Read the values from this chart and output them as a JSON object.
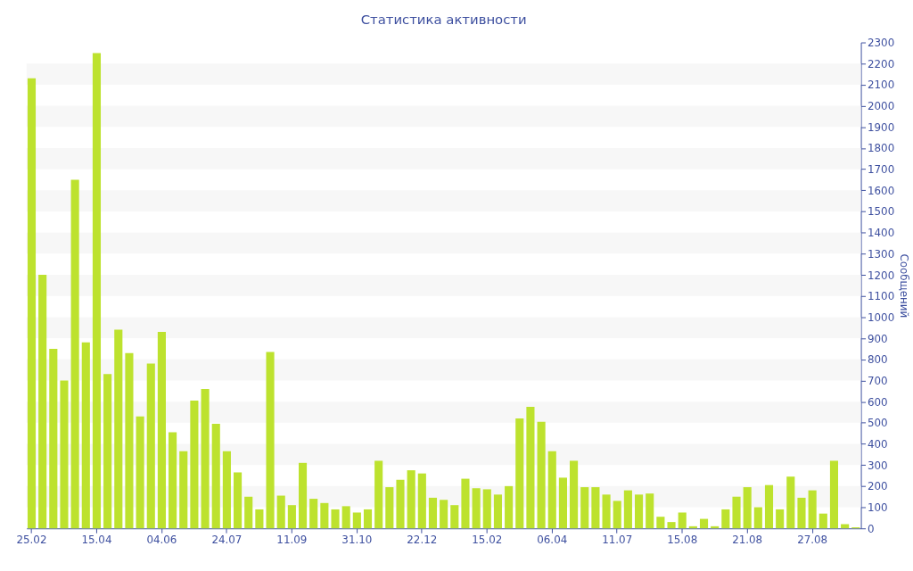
{
  "chart_data": {
    "type": "bar",
    "title": "Статистика активности",
    "ylabel": "Сообщений",
    "categories": [
      "25.02",
      null,
      null,
      null,
      null,
      null,
      "15.04",
      null,
      null,
      null,
      null,
      null,
      "04.06",
      null,
      null,
      null,
      null,
      null,
      "24.07",
      null,
      null,
      null,
      null,
      null,
      "11.09",
      null,
      null,
      null,
      null,
      null,
      "31.10",
      null,
      null,
      null,
      null,
      null,
      "22.12",
      null,
      null,
      null,
      null,
      null,
      "15.02",
      null,
      null,
      null,
      null,
      null,
      "06.04",
      null,
      null,
      null,
      null,
      null,
      "11.07",
      null,
      null,
      null,
      null,
      null,
      "15.08",
      null,
      null,
      null,
      null,
      null,
      "21.08",
      null,
      null,
      null,
      null,
      null,
      "27.08",
      null,
      null,
      null,
      null
    ],
    "values": [
      2130,
      1200,
      850,
      700,
      1650,
      880,
      2250,
      730,
      940,
      830,
      530,
      780,
      930,
      455,
      365,
      605,
      660,
      495,
      365,
      265,
      150,
      90,
      835,
      155,
      110,
      310,
      140,
      120,
      90,
      105,
      75,
      90,
      320,
      195,
      230,
      275,
      260,
      145,
      135,
      110,
      235,
      190,
      185,
      160,
      200,
      520,
      575,
      505,
      365,
      240,
      320,
      195,
      195,
      160,
      130,
      180,
      160,
      165,
      55,
      30,
      75,
      10,
      45,
      10,
      90,
      150,
      195,
      100,
      205,
      90,
      245,
      145,
      180,
      70,
      320,
      20,
      5
    ],
    "color": "#bde22e",
    "ylim": [
      0,
      2300
    ],
    "yticks": [
      0,
      100,
      200,
      300,
      400,
      500,
      600,
      700,
      800,
      900,
      1000,
      1100,
      1200,
      1300,
      1400,
      1500,
      1600,
      1700,
      1800,
      1900,
      2000,
      2100,
      2200,
      2300
    ],
    "bands": [
      {
        "axis": "y",
        "from": 100,
        "to": 200,
        "color": "#f7f7f7"
      },
      {
        "axis": "y",
        "from": 300,
        "to": 400,
        "color": "#f7f7f7"
      },
      {
        "axis": "y",
        "from": 500,
        "to": 600,
        "color": "#f7f7f7"
      },
      {
        "axis": "y",
        "from": 700,
        "to": 800,
        "color": "#f7f7f7"
      },
      {
        "axis": "y",
        "from": 900,
        "to": 1000,
        "color": "#f7f7f7"
      },
      {
        "axis": "y",
        "from": 1100,
        "to": 1200,
        "color": "#f7f7f7"
      },
      {
        "axis": "y",
        "from": 1300,
        "to": 1400,
        "color": "#f7f7f7"
      },
      {
        "axis": "y",
        "from": 1500,
        "to": 1600,
        "color": "#f7f7f7"
      },
      {
        "axis": "y",
        "from": 1700,
        "to": 1800,
        "color": "#f7f7f7"
      },
      {
        "axis": "y",
        "from": 1900,
        "to": 2000,
        "color": "#f7f7f7"
      },
      {
        "axis": "y",
        "from": 2100,
        "to": 2200,
        "color": "#f7f7f7"
      }
    ]
  }
}
